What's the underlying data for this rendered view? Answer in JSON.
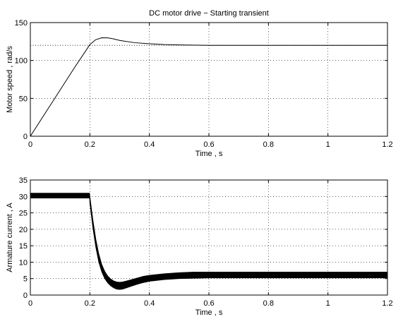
{
  "chart_data": [
    {
      "type": "line",
      "title": "DC motor drive − Starting transient",
      "xlabel": "Time , s",
      "ylabel": "Motor speed , rad/s",
      "xlim": [
        0,
        1.2
      ],
      "ylim": [
        0,
        150
      ],
      "xticks": [
        0,
        0.2,
        0.4,
        0.6,
        0.8,
        1,
        1.2
      ],
      "xtick_labels": [
        "0",
        "0.2",
        "0.4",
        "0.6",
        "0.8",
        "1",
        "1.2"
      ],
      "yticks": [
        0,
        50,
        100,
        150
      ],
      "ytick_labels": [
        "0",
        "50",
        "100",
        "150"
      ],
      "grid": true,
      "reference_line": {
        "y": 120,
        "style": "dotted"
      },
      "series": [
        {
          "x": [
            0,
            0.05,
            0.1,
            0.15,
            0.19,
            0.2,
            0.22,
            0.24,
            0.26,
            0.28,
            0.3,
            0.35,
            0.4,
            0.45,
            0.5,
            0.6,
            0.8,
            1.0,
            1.2
          ],
          "y": [
            0,
            30.5,
            61,
            91.5,
            115,
            121,
            127.5,
            130,
            129.8,
            128.5,
            126.5,
            123.5,
            122,
            121,
            120.5,
            120,
            120,
            120,
            120
          ],
          "style": "solid"
        }
      ]
    },
    {
      "type": "line",
      "title": "",
      "xlabel": "Time , s",
      "ylabel": "Armature current , A",
      "xlim": [
        0,
        1.2
      ],
      "ylim": [
        0,
        35
      ],
      "xticks": [
        0,
        0.2,
        0.4,
        0.6,
        0.8,
        1,
        1.2
      ],
      "xtick_labels": [
        "0",
        "0.2",
        "0.4",
        "0.6",
        "0.8",
        "1",
        "1.2"
      ],
      "yticks": [
        0,
        5,
        10,
        15,
        20,
        25,
        30,
        35
      ],
      "ytick_labels": [
        "0",
        "5",
        "10",
        "15",
        "20",
        "25",
        "30",
        "35"
      ],
      "grid": true,
      "series": [
        {
          "x": [
            0,
            0.1,
            0.199,
            0.2,
            0.21,
            0.22,
            0.23,
            0.24,
            0.25,
            0.26,
            0.27,
            0.28,
            0.29,
            0.3,
            0.31,
            0.32,
            0.34,
            0.36,
            0.38,
            0.4,
            0.45,
            0.5,
            0.55,
            0.6,
            0.7,
            0.8,
            1.0,
            1.2
          ],
          "y_upper": [
            31,
            31,
            31,
            30,
            23,
            17,
            12.5,
            9.3,
            7.2,
            5.8,
            4.9,
            4.3,
            4.0,
            3.9,
            4.0,
            4.2,
            4.7,
            5.2,
            5.7,
            6.0,
            6.5,
            6.8,
            7.0,
            7.0,
            7.0,
            7.0,
            7.0,
            7.0
          ],
          "y_lower": [
            29.5,
            29.5,
            29.5,
            28,
            20.5,
            14.5,
            10,
            7,
            5.0,
            3.7,
            2.8,
            2.2,
            1.8,
            1.7,
            1.8,
            2.1,
            2.7,
            3.3,
            3.8,
            4.2,
            4.7,
            5.0,
            5.1,
            5.2,
            5.2,
            5.2,
            5.2,
            5.2
          ],
          "style": "ripple band"
        }
      ]
    }
  ]
}
